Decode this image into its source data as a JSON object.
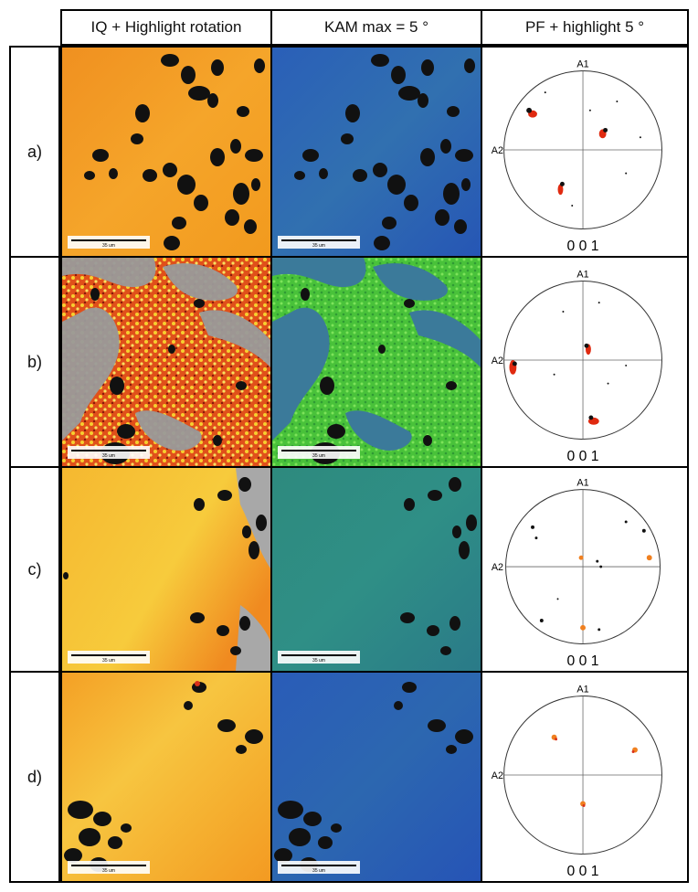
{
  "header": {
    "corner": "",
    "col1": "IQ + Highlight rotation",
    "col2": "KAM max = 5 °",
    "col3": "PF + highlight 5 °"
  },
  "rows": [
    {
      "label": "a)",
      "scale": "35 um",
      "pf_label": "0 0 1"
    },
    {
      "label": "b)",
      "scale": "35 um",
      "pf_label": "0 0 1"
    },
    {
      "label": "c)",
      "scale": "35 um",
      "pf_label": "0 0 1"
    },
    {
      "label": "d)",
      "scale": "35 um",
      "pf_label": "0 0 1"
    }
  ],
  "pole_figure": {
    "top_axis": "A1",
    "left_axis": "A2"
  },
  "colors": {
    "iq_orange": "#f39a1d",
    "iq_yellow": "#f7c845",
    "kam_blue": "#2957b8",
    "kam_green": "#55cc44",
    "highlight_red": "#d9301a"
  }
}
